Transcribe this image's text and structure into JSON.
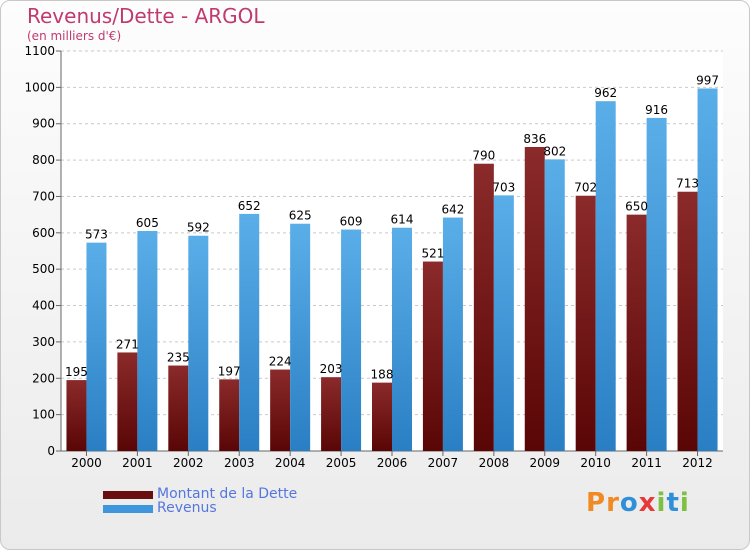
{
  "title": "Revenus/Dette - ARGOL",
  "subtitle": "(en milliers d'€)",
  "logo": "Proxiti",
  "chart_data": {
    "type": "bar",
    "title": "Revenus/Dette - ARGOL",
    "subtitle": "(en milliers d'€)",
    "categories": [
      "2000",
      "2001",
      "2002",
      "2003",
      "2004",
      "2005",
      "2006",
      "2007",
      "2008",
      "2009",
      "2010",
      "2011",
      "2012"
    ],
    "series": [
      {
        "name": "Montant de la Dette",
        "color": "#7a1a1a",
        "values": [
          195,
          271,
          235,
          197,
          224,
          203,
          188,
          521,
          790,
          836,
          702,
          650,
          713
        ]
      },
      {
        "name": "Revenus",
        "color": "#3f96dd",
        "values": [
          573,
          605,
          592,
          652,
          625,
          609,
          614,
          642,
          703,
          802,
          962,
          916,
          997
        ]
      }
    ],
    "ylim": [
      0,
      1100
    ],
    "yticks": [
      0,
      100,
      200,
      300,
      400,
      500,
      600,
      700,
      800,
      900,
      1000,
      1100
    ],
    "grid": true,
    "legend_position": "bottom-left"
  }
}
